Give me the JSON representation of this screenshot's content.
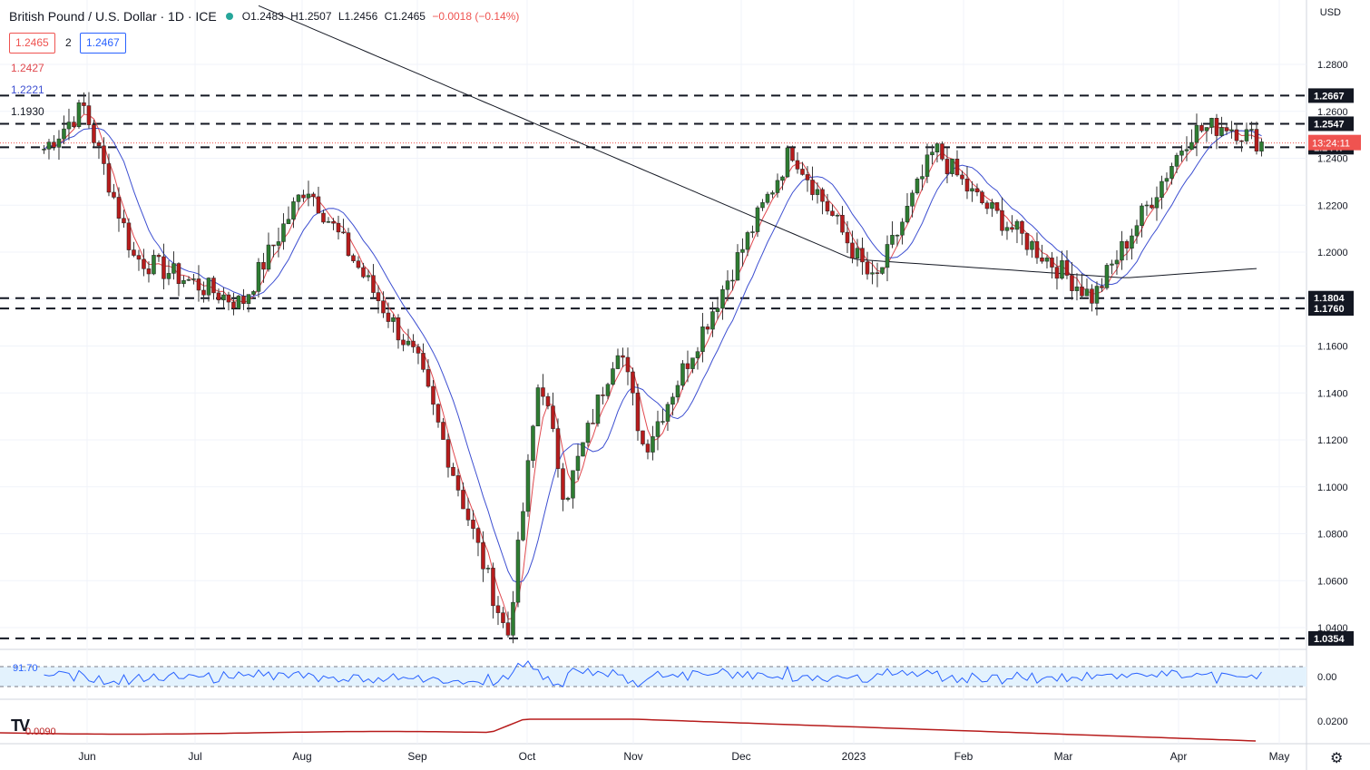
{
  "header": {
    "title": "British Pound / U.S. Dollar · 1D · ICE",
    "ohlc": {
      "o": "O1.2483",
      "h": "H1.2507",
      "l": "L1.2456",
      "c": "C1.2465",
      "chg": "−0.0018 (−0.14%)"
    },
    "bid": "1.2465",
    "spread": "2",
    "ask": "1.2467",
    "ma_values": [
      {
        "label": "1.2427",
        "color": "#e0494f"
      },
      {
        "label": "1.2221",
        "color": "#3d4fd1"
      },
      {
        "label": "1.1930",
        "color": "#131722"
      }
    ]
  },
  "currency": "USD",
  "countdown": "13:24:11",
  "rsi_label": "91.70",
  "macd_label": "0.0090",
  "colors": {
    "up": "#26a69a",
    "down": "#ef5350",
    "ma_red": "#e0494f",
    "ma_blue": "#3d4fd1",
    "ma_black": "#131722"
  },
  "chart_data": {
    "type": "candlestick",
    "title": "British Pound / U.S. Dollar · 1D · ICE",
    "x_labels": [
      "Jun",
      "Jul",
      "Aug",
      "Sep",
      "Oct",
      "Nov",
      "Dec",
      "2023",
      "Feb",
      "Mar",
      "Apr",
      "May"
    ],
    "y_ticks": [
      "1.2800",
      "1.2600",
      "1.2400",
      "1.2200",
      "1.2000",
      "1.1800",
      "1.1600",
      "1.1400",
      "1.1200",
      "1.1000",
      "1.0800",
      "1.0600",
      "1.0400"
    ],
    "ylim": [
      1.034,
      1.295
    ],
    "horizontal_levels": [
      1.2667,
      1.2547,
      1.2447,
      1.1804,
      1.176,
      1.0354
    ],
    "current_price": 1.2465,
    "key_points": [
      {
        "date": "2022-05-20",
        "close": 1.244
      },
      {
        "date": "2022-05-31",
        "close": 1.262
      },
      {
        "date": "2022-06-14",
        "close": 1.198
      },
      {
        "date": "2022-07-14",
        "close": 1.178
      },
      {
        "date": "2022-08-01",
        "close": 1.229
      },
      {
        "date": "2022-09-01",
        "close": 1.153
      },
      {
        "date": "2022-09-26",
        "close": 1.0354
      },
      {
        "date": "2022-10-05",
        "close": 1.149
      },
      {
        "date": "2022-10-12",
        "close": 1.095
      },
      {
        "date": "2022-10-27",
        "close": 1.162
      },
      {
        "date": "2022-11-03",
        "close": 1.116
      },
      {
        "date": "2022-12-14",
        "close": 1.244
      },
      {
        "date": "2023-01-06",
        "close": 1.186
      },
      {
        "date": "2023-01-23",
        "close": 1.244
      },
      {
        "date": "2023-02-02",
        "close": 1.225
      },
      {
        "date": "2023-03-08",
        "close": 1.1804
      },
      {
        "date": "2023-04-04",
        "close": 1.251
      },
      {
        "date": "2023-04-14",
        "close": 1.2545
      },
      {
        "date": "2023-04-24",
        "close": 1.2465
      }
    ],
    "moving_averages": [
      {
        "name": "1.2427",
        "color": "#e0494f",
        "last": 1.2427
      },
      {
        "name": "1.2221",
        "color": "#3d4fd1",
        "last": 1.2221
      },
      {
        "name": "1.1930",
        "color": "#131722",
        "last": 1.193
      }
    ],
    "grid": true
  }
}
